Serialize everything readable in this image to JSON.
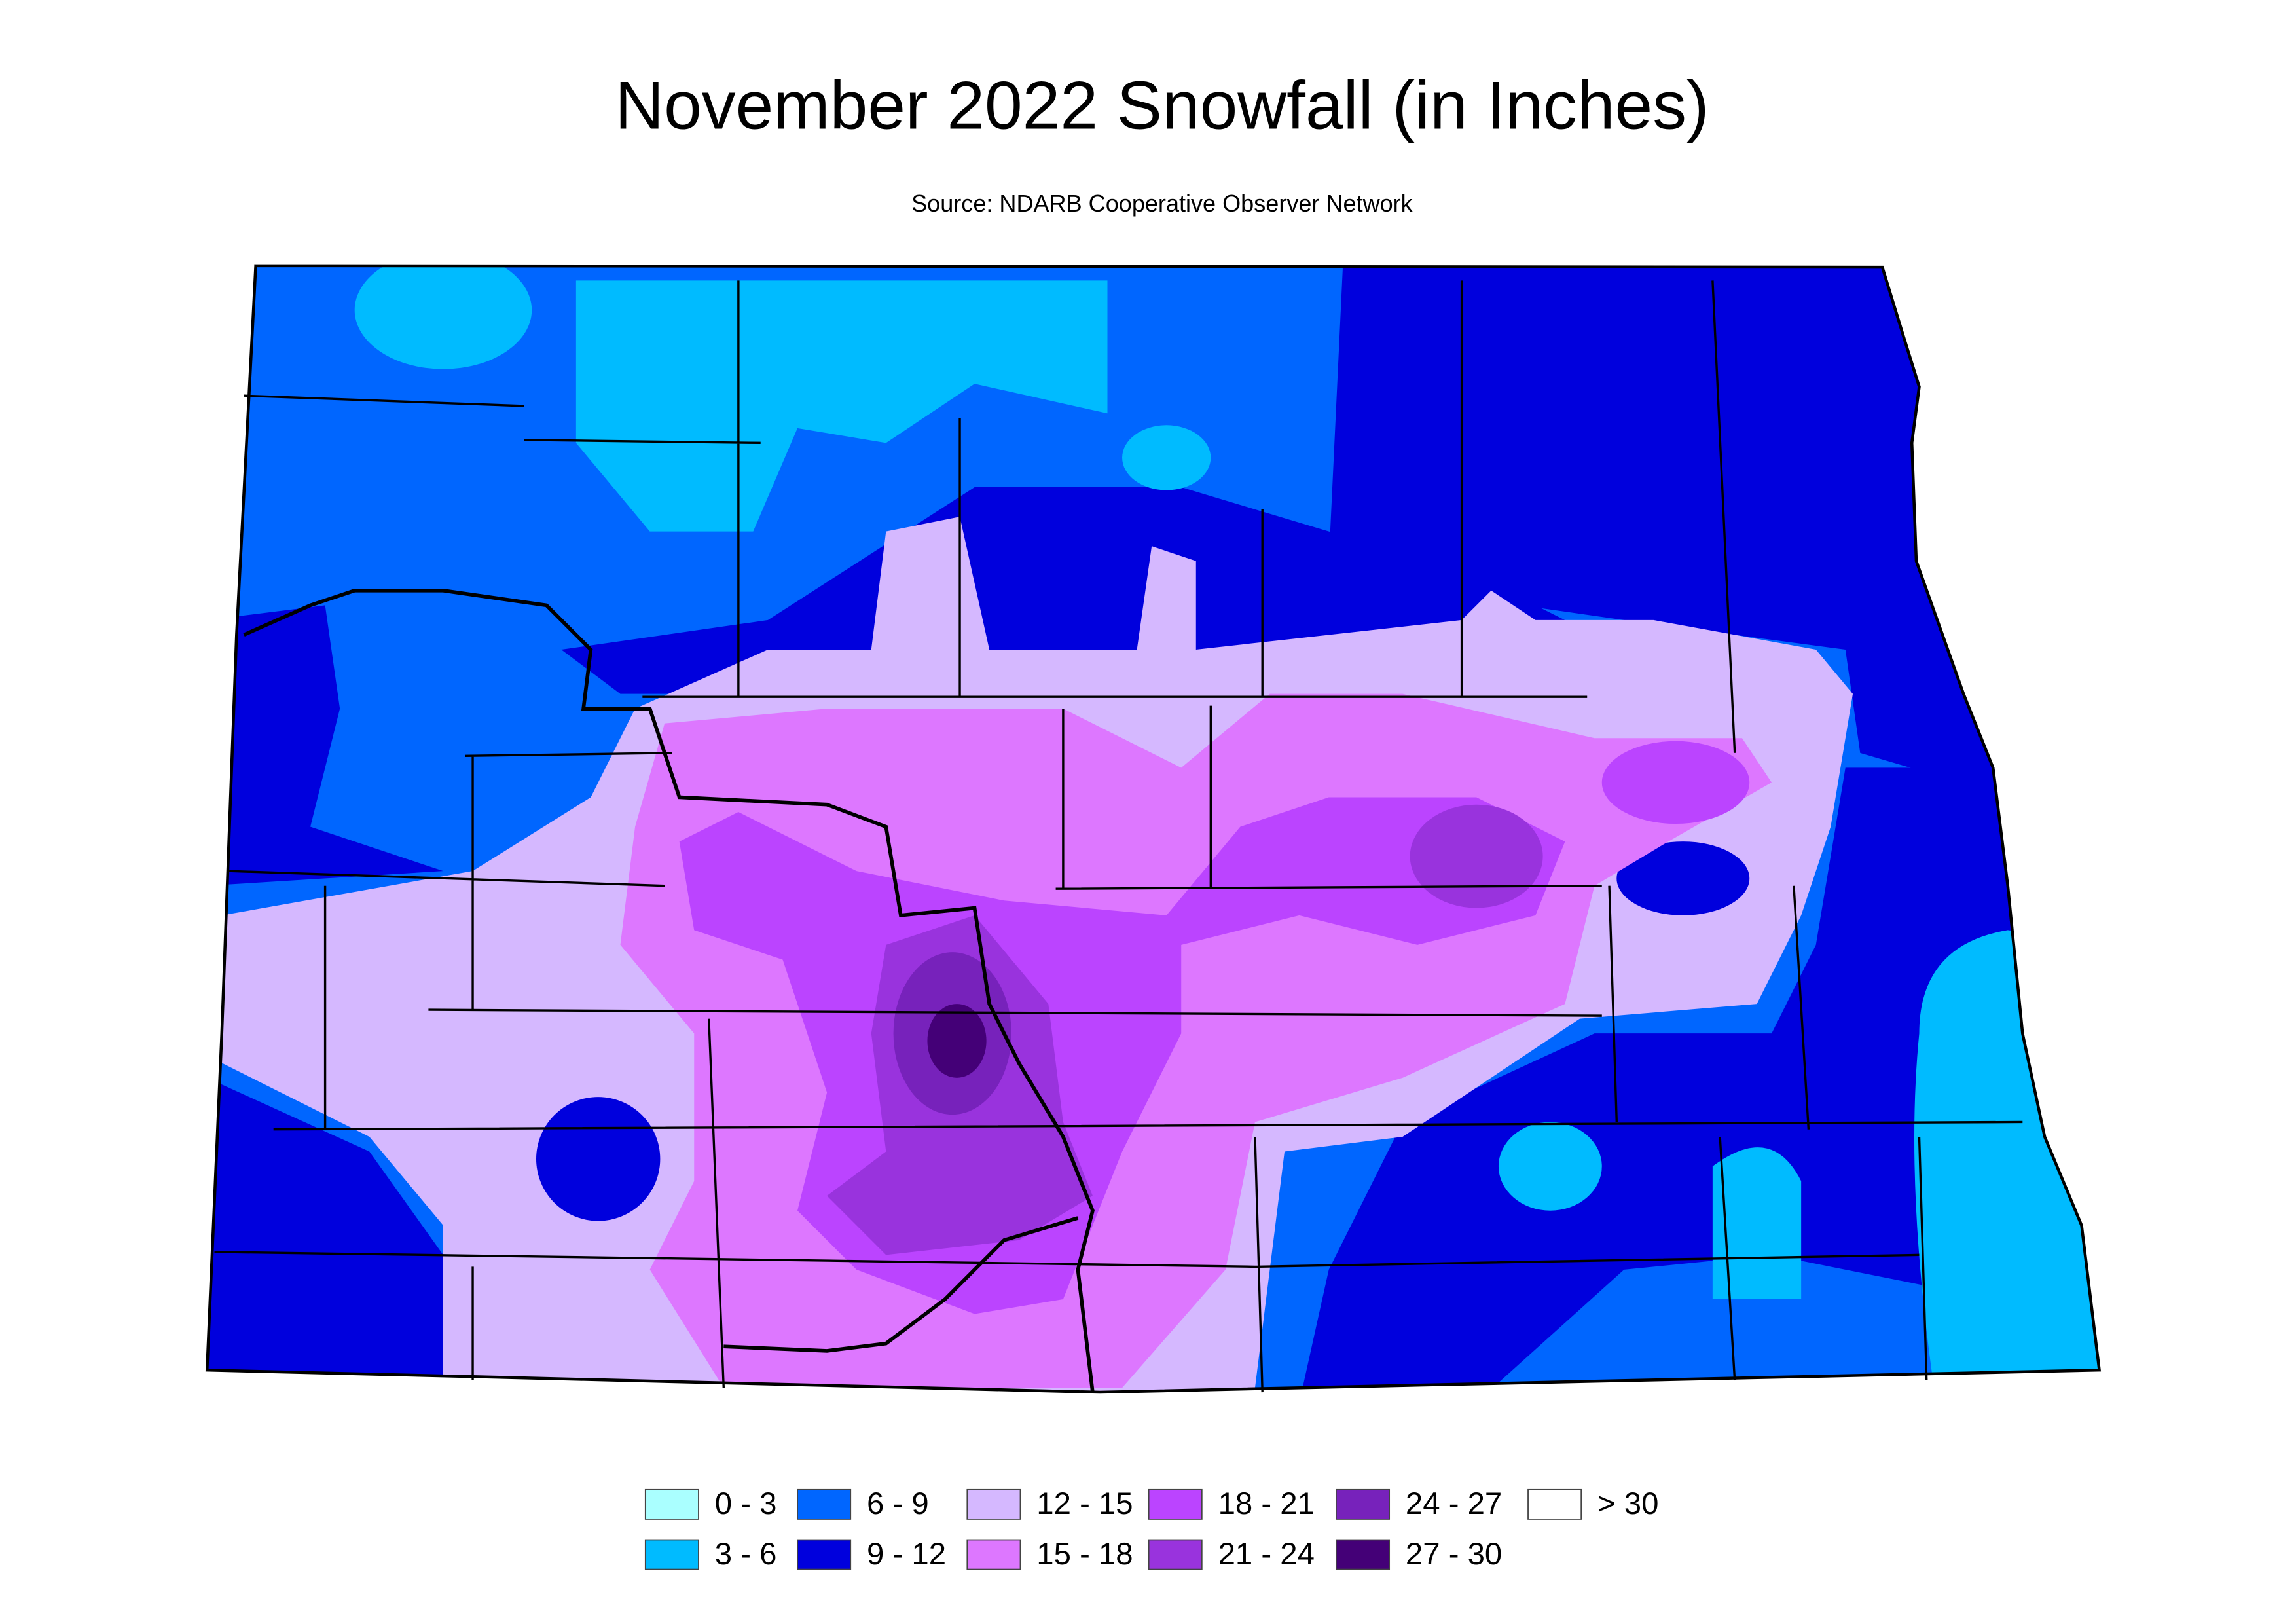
{
  "title": "November 2022 Snowfall (in Inches)",
  "subtitle": "Source: NDARB Cooperative Observer Network",
  "legend": [
    {
      "label": "0 - 3",
      "color": "#aaffff"
    },
    {
      "label": "3 - 6",
      "color": "#00bbff"
    },
    {
      "label": "6 - 9",
      "color": "#0066ff"
    },
    {
      "label": "9 - 12",
      "color": "#0000dd"
    },
    {
      "label": "12 - 15",
      "color": "#d5b8ff"
    },
    {
      "label": "15 - 18",
      "color": "#dd77ff"
    },
    {
      "label": "18 - 21",
      "color": "#bb44ff"
    },
    {
      "label": "21 - 24",
      "color": "#9933dd"
    },
    {
      "label": "24 - 27",
      "color": "#7722bb"
    },
    {
      "label": "27 - 30",
      "color": "#440077"
    },
    {
      "label": "> 30",
      "color": "#ffffff"
    }
  ]
}
